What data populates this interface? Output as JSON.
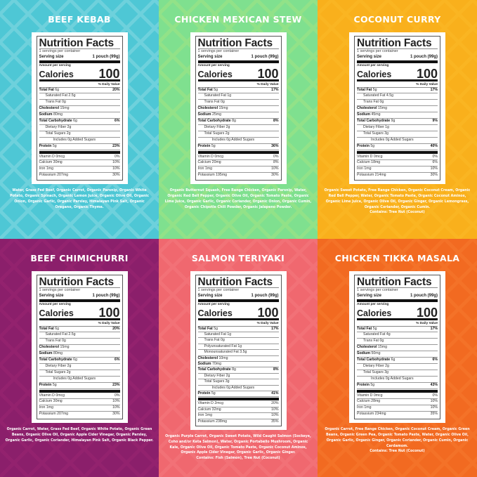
{
  "common": {
    "heading": "Nutrition Facts",
    "servings": "1 servings per container",
    "serving_size_label": "Serving size",
    "serving_size_value": "1 pouch (99g)",
    "amount_per_serving": "Amount per serving",
    "calories_label": "Calories",
    "daily_value_header": "% Daily Value"
  },
  "products": [
    {
      "name": "BEEF KEBAB",
      "bg": "#4ec7d5",
      "pattern": "#ffffff",
      "calories": "100",
      "nutrients": [
        {
          "label": "Total Fat",
          "amount": "6g",
          "dv": "20%"
        },
        {
          "label": "Saturated Fat",
          "amount": "2.5g",
          "dv": ""
        },
        {
          "label": "Trans Fat",
          "amount": "0g",
          "dv": ""
        },
        {
          "label": "Cholesterol",
          "amount": "15mg",
          "dv": ""
        },
        {
          "label": "Sodium",
          "amount": "80mg",
          "dv": ""
        },
        {
          "label": "Total Carbohydrate",
          "amount": "6g",
          "dv": "6%"
        },
        {
          "label": "Dietary Fiber",
          "amount": "2g",
          "dv": ""
        },
        {
          "label": "Total Sugars",
          "amount": "2g",
          "dv": ""
        },
        {
          "label": "Includes 0g Added Sugars",
          "amount": "",
          "dv": ""
        },
        {
          "label": "Protein",
          "amount": "5g",
          "dv": "23%"
        }
      ],
      "vitamins": [
        {
          "label": "Vitamin D 0mcg",
          "dv": "0%"
        },
        {
          "label": "Calcium 30mg",
          "dv": "10%"
        },
        {
          "label": "Iron 1mg",
          "dv": "10%"
        },
        {
          "label": "Potassium 207mg",
          "dv": "30%"
        }
      ],
      "ingredients": "Water, Grass Fed Beef, Organic Carrot, Organic Parsnip, Organic White Potato, Organic Spinach, Organic Lemon Juice, Organic Olive Oil, Organic Onion, Organic Garlic, Organic Parsley, Himalayan Pink Salt, Organic Oregano, Organic Thyme.",
      "contains": ""
    },
    {
      "name": "CHICKEN MEXICAN STEW",
      "bg": "#7fe08f",
      "pattern": "#e9ef6a",
      "calories": "100",
      "nutrients": [
        {
          "label": "Total Fat",
          "amount": "5g",
          "dv": "17%"
        },
        {
          "label": "Saturated Fat",
          "amount": "1g",
          "dv": ""
        },
        {
          "label": "Trans Fat",
          "amount": "0g",
          "dv": ""
        },
        {
          "label": "Cholesterol",
          "amount": "15mg",
          "dv": ""
        },
        {
          "label": "Sodium",
          "amount": "25mg",
          "dv": ""
        },
        {
          "label": "Total Carbohydrate",
          "amount": "8g",
          "dv": "8%"
        },
        {
          "label": "Dietary Fiber",
          "amount": "2g",
          "dv": ""
        },
        {
          "label": "Total Sugars",
          "amount": "2g",
          "dv": ""
        },
        {
          "label": "Includes 0g Added Sugars",
          "amount": "",
          "dv": ""
        },
        {
          "label": "Protein",
          "amount": "5g",
          "dv": "36%"
        }
      ],
      "vitamins": [
        {
          "label": "Vitamin D 0mcg",
          "dv": "0%"
        },
        {
          "label": "Calcium 20mg",
          "dv": "8%"
        },
        {
          "label": "Iron 1mg",
          "dv": "10%"
        },
        {
          "label": "Potassium 195mg",
          "dv": "30%"
        }
      ],
      "ingredients": "Organic Butternut Squash, Free Range Chicken, Organic Parsnip, Water, Organic Red Bell Pepper, Organic Olive Oil, Organic Tomato Paste, Organic Lime Juice, Organic Garlic, Organic Coriander, Organic Onion, Organic Cumin, Organic Chipotle Chili Powder, Organic Jalapeno Powder.",
      "contains": ""
    },
    {
      "name": "COCONUT CURRY",
      "bg": "#f9b01c",
      "pattern": "#ffd040",
      "calories": "100",
      "nutrients": [
        {
          "label": "Total Fat",
          "amount": "5g",
          "dv": "17%"
        },
        {
          "label": "Saturated Fat",
          "amount": "4.5g",
          "dv": ""
        },
        {
          "label": "Trans Fat",
          "amount": "0g",
          "dv": ""
        },
        {
          "label": "Cholesterol",
          "amount": "15mg",
          "dv": ""
        },
        {
          "label": "Sodium",
          "amount": "45mg",
          "dv": ""
        },
        {
          "label": "Total Carbohydrate",
          "amount": "9g",
          "dv": "9%"
        },
        {
          "label": "Dietary Fiber",
          "amount": "1g",
          "dv": ""
        },
        {
          "label": "Total Sugars",
          "amount": "3g",
          "dv": ""
        },
        {
          "label": "Includes 0g Added Sugars",
          "amount": "",
          "dv": ""
        },
        {
          "label": "Protein",
          "amount": "5g",
          "dv": "40%"
        }
      ],
      "vitamins": [
        {
          "label": "Vitamin D 0mcg",
          "dv": "0%"
        },
        {
          "label": "Calcium 18mg",
          "dv": "6%"
        },
        {
          "label": "Iron 1mg",
          "dv": "10%"
        },
        {
          "label": "Potassium 214mg",
          "dv": "30%"
        }
      ],
      "ingredients": "Organic Sweet Potato, Free Range Chicken, Organic Coconut Cream, Organic Red Bell Pepper, Water, Organic Tomato Paste, Organic Coconut Aminos, Organic Lime Juice, Organic Olive Oil, Organic Ginger, Organic Lemongrass, Organic Coriander, Organic Cumin.",
      "contains": "Contains: Tree Nut (Coconut)"
    },
    {
      "name": "BEEF CHIMICHURRI",
      "bg": "#8b1f6b",
      "pattern": "#b8307f",
      "calories": "100",
      "nutrients": [
        {
          "label": "Total Fat",
          "amount": "6g",
          "dv": "20%"
        },
        {
          "label": "Saturated Fat",
          "amount": "2.5g",
          "dv": ""
        },
        {
          "label": "Trans Fat",
          "amount": "0g",
          "dv": ""
        },
        {
          "label": "Cholesterol",
          "amount": "15mg",
          "dv": ""
        },
        {
          "label": "Sodium",
          "amount": "80mg",
          "dv": ""
        },
        {
          "label": "Total Carbohydrate",
          "amount": "6g",
          "dv": "6%"
        },
        {
          "label": "Dietary Fiber",
          "amount": "2g",
          "dv": ""
        },
        {
          "label": "Total Sugars",
          "amount": "2g",
          "dv": ""
        },
        {
          "label": "Includes 0g Added Sugars",
          "amount": "",
          "dv": ""
        },
        {
          "label": "Protein",
          "amount": "5g",
          "dv": "23%"
        }
      ],
      "vitamins": [
        {
          "label": "Vitamin D 0mcg",
          "dv": "0%"
        },
        {
          "label": "Calcium 30mg",
          "dv": "10%"
        },
        {
          "label": "Iron 1mg",
          "dv": "10%"
        },
        {
          "label": "Potassium 207mg",
          "dv": "30%"
        }
      ],
      "ingredients": "Organic Carrot, Water, Grass Fed Beef, Organic White Potato, Organic Green Beans, Organic Olive Oil, Organic Apple Cider Vinegar, Organic Parsley, Organic Garlic, Organic Coriander, Himalayan Pink Salt, Organic Black Pepper.",
      "contains": ""
    },
    {
      "name": "SALMON TERIYAKI",
      "bg": "#f0686f",
      "pattern": "#ff9aa0",
      "calories": "100",
      "nutrients": [
        {
          "label": "Total Fat",
          "amount": "5g",
          "dv": "17%"
        },
        {
          "label": "Saturated Fat",
          "amount": "1g",
          "dv": ""
        },
        {
          "label": "Trans Fat",
          "amount": "0g",
          "dv": ""
        },
        {
          "label": "Polyunsaturated Fat",
          "amount": "1g",
          "dv": ""
        },
        {
          "label": "Monounsaturated Fat",
          "amount": "3.5g",
          "dv": ""
        },
        {
          "label": "Cholesterol",
          "amount": "10mg",
          "dv": ""
        },
        {
          "label": "Sodium",
          "amount": "70mg",
          "dv": ""
        },
        {
          "label": "Total Carbohydrate",
          "amount": "8g",
          "dv": "8%"
        },
        {
          "label": "Dietary Fiber",
          "amount": "2g",
          "dv": ""
        },
        {
          "label": "Total Sugars",
          "amount": "3g",
          "dv": ""
        },
        {
          "label": "Includes 0g Added Sugars",
          "amount": "",
          "dv": ""
        },
        {
          "label": "Protein",
          "amount": "5g",
          "dv": "41%"
        }
      ],
      "vitamins": [
        {
          "label": "Vitamin D 2mcg",
          "dv": "20%"
        },
        {
          "label": "Calcium 32mg",
          "dv": "10%"
        },
        {
          "label": "Iron 1mg",
          "dv": "10%"
        },
        {
          "label": "Potassium 238mg",
          "dv": "35%"
        }
      ],
      "ingredients": "Organic Purple Carrot, Organic Sweet Potato, Wild Caught Salmon (Sockeye, Coho and/or Keta Salmon), Water, Organic Portabello Mushroom, Organic Kale, Organic Olive Oil, Organic Tomato Paste, Organic Coconut Aminos, Organic Apple Cider Vinegar, Organic Garlic, Organic Ginger.",
      "contains": "Contains: Fish (Salmon), Tree Nut (Coconut)"
    },
    {
      "name": "CHICKEN TIKKA MASALA",
      "bg": "#f26a21",
      "pattern": "#ff9a4a",
      "calories": "100",
      "nutrients": [
        {
          "label": "Total Fat",
          "amount": "5g",
          "dv": "17%"
        },
        {
          "label": "Saturated Fat",
          "amount": "4g",
          "dv": ""
        },
        {
          "label": "Trans Fat",
          "amount": "0g",
          "dv": ""
        },
        {
          "label": "Cholesterol",
          "amount": "15mg",
          "dv": ""
        },
        {
          "label": "Sodium",
          "amount": "50mg",
          "dv": ""
        },
        {
          "label": "Total Carbohydrate",
          "amount": "6g",
          "dv": "6%"
        },
        {
          "label": "Dietary Fiber",
          "amount": "2g",
          "dv": ""
        },
        {
          "label": "Total Sugars",
          "amount": "3g",
          "dv": ""
        },
        {
          "label": "Includes 0g Added Sugars",
          "amount": "",
          "dv": ""
        },
        {
          "label": "Protein",
          "amount": "5g",
          "dv": "43%"
        }
      ],
      "vitamins": [
        {
          "label": "Vitamin D 0mcg",
          "dv": "0%"
        },
        {
          "label": "Calcium 28mg",
          "dv": "10%"
        },
        {
          "label": "Iron 1mg",
          "dv": "10%"
        },
        {
          "label": "Potassium 234mg",
          "dv": "35%"
        }
      ],
      "ingredients": "Organic Carrot, Free Range Chicken, Organic Coconut Cream, Organic Green Beans, Organic Green Pea, Organic Tomato Paste, Water, Organic Olive Oil, Organic Garlic, Organic Ginger, Organic Coriander, Organic Cumin, Organic Cardamom.",
      "contains": "Contains: Tree Nut (Coconut)"
    }
  ]
}
